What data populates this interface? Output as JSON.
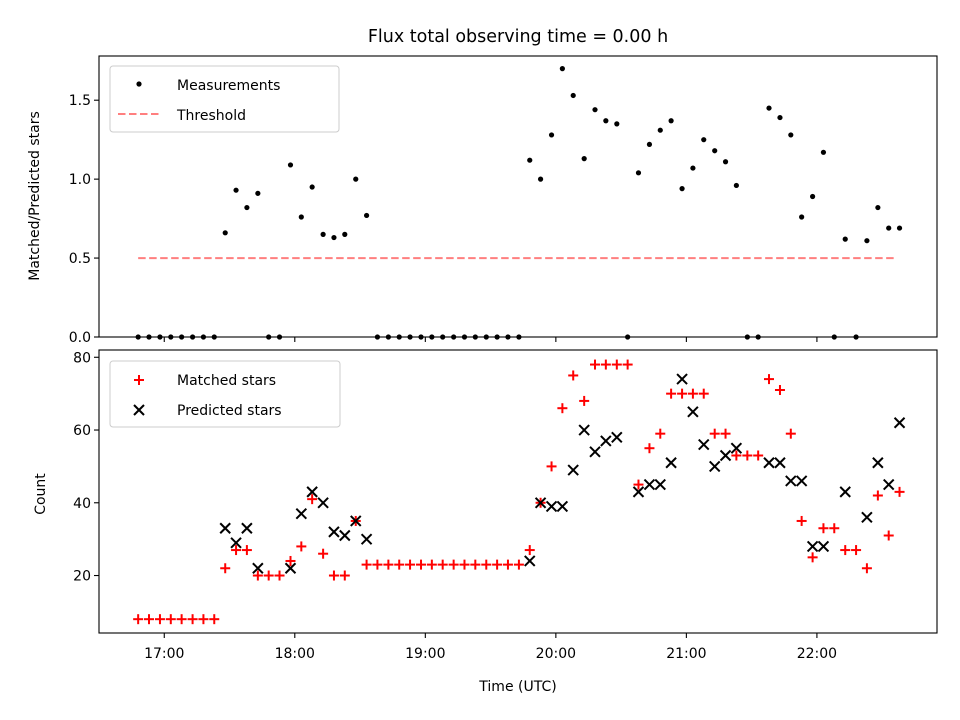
{
  "chart_data": [
    {
      "type": "scatter",
      "title": "Flux total observing time = 0.00 h",
      "xlabel": "",
      "ylabel": "Matched/Predicted stars",
      "xlim": [
        16.5,
        22.92
      ],
      "ylim": [
        0.0,
        1.78
      ],
      "yticks": [
        0.0,
        0.5,
        1.0,
        1.5
      ],
      "ytick_labels": [
        "0.0",
        "0.5",
        "1.0",
        "1.5"
      ],
      "legend": {
        "placement": "top-left",
        "entries": [
          "Measurements",
          "Threshold"
        ]
      },
      "threshold": {
        "name": "Threshold",
        "value": 0.5,
        "x_range": [
          16.8,
          22.6
        ],
        "color": "#ff7f7f"
      },
      "series": [
        {
          "name": "Measurements",
          "color": "#000000",
          "points": [
            [
              16.8,
              0
            ],
            [
              16.883,
              0
            ],
            [
              16.967,
              0
            ],
            [
              17.05,
              0
            ],
            [
              17.133,
              0
            ],
            [
              17.217,
              0
            ],
            [
              17.3,
              0
            ],
            [
              17.383,
              0
            ],
            [
              17.467,
              0.66
            ],
            [
              17.55,
              0.93
            ],
            [
              17.633,
              0.82
            ],
            [
              17.717,
              0.91
            ],
            [
              17.8,
              0
            ],
            [
              17.883,
              0
            ],
            [
              17.967,
              1.09
            ],
            [
              18.05,
              0.76
            ],
            [
              18.133,
              0.95
            ],
            [
              18.217,
              0.65
            ],
            [
              18.3,
              0.63
            ],
            [
              18.383,
              0.65
            ],
            [
              18.467,
              1.0
            ],
            [
              18.55,
              0.77
            ],
            [
              18.633,
              0
            ],
            [
              18.717,
              0
            ],
            [
              18.8,
              0
            ],
            [
              18.883,
              0
            ],
            [
              18.967,
              0
            ],
            [
              19.05,
              0
            ],
            [
              19.133,
              0
            ],
            [
              19.217,
              0
            ],
            [
              19.3,
              0
            ],
            [
              19.383,
              0
            ],
            [
              19.467,
              0
            ],
            [
              19.55,
              0
            ],
            [
              19.633,
              0
            ],
            [
              19.717,
              0
            ],
            [
              19.8,
              1.12
            ],
            [
              19.883,
              1.0
            ],
            [
              19.967,
              1.28
            ],
            [
              20.05,
              1.7
            ],
            [
              20.133,
              1.53
            ],
            [
              20.217,
              1.13
            ],
            [
              20.3,
              1.44
            ],
            [
              20.383,
              1.37
            ],
            [
              20.467,
              1.35
            ],
            [
              20.55,
              0
            ],
            [
              20.633,
              1.04
            ],
            [
              20.717,
              1.22
            ],
            [
              20.8,
              1.31
            ],
            [
              20.883,
              1.37
            ],
            [
              20.967,
              0.94
            ],
            [
              21.05,
              1.07
            ],
            [
              21.133,
              1.25
            ],
            [
              21.217,
              1.18
            ],
            [
              21.3,
              1.11
            ],
            [
              21.383,
              0.96
            ],
            [
              21.467,
              0
            ],
            [
              21.55,
              0
            ],
            [
              21.633,
              1.45
            ],
            [
              21.717,
              1.39
            ],
            [
              21.8,
              1.28
            ],
            [
              21.883,
              0.76
            ],
            [
              21.967,
              0.89
            ],
            [
              22.05,
              1.17
            ],
            [
              22.133,
              0
            ],
            [
              22.217,
              0.62
            ],
            [
              22.3,
              0
            ],
            [
              22.383,
              0.61
            ],
            [
              22.467,
              0.82
            ],
            [
              22.55,
              0.69
            ],
            [
              22.633,
              0.69
            ]
          ]
        }
      ]
    },
    {
      "type": "scatter",
      "title": "",
      "xlabel": "Time (UTC)",
      "ylabel": "Count",
      "xlim": [
        16.5,
        22.92
      ],
      "ylim": [
        4.2,
        82.0
      ],
      "xticks": [
        17,
        18,
        19,
        20,
        21,
        22
      ],
      "xtick_labels": [
        "17:00",
        "18:00",
        "19:00",
        "20:00",
        "21:00",
        "22:00"
      ],
      "yticks": [
        20,
        40,
        60,
        80
      ],
      "ytick_labels": [
        "20",
        "40",
        "60",
        "80"
      ],
      "legend": {
        "placement": "top-left",
        "entries": [
          "Matched stars",
          "Predicted stars"
        ]
      },
      "series": [
        {
          "name": "Matched stars",
          "marker": "plus",
          "color": "#ff0000",
          "points": [
            [
              16.8,
              8
            ],
            [
              16.883,
              8
            ],
            [
              16.967,
              8
            ],
            [
              17.05,
              8
            ],
            [
              17.133,
              8
            ],
            [
              17.217,
              8
            ],
            [
              17.3,
              8
            ],
            [
              17.383,
              8
            ],
            [
              17.467,
              22
            ],
            [
              17.55,
              27
            ],
            [
              17.633,
              27
            ],
            [
              17.717,
              20
            ],
            [
              17.8,
              20
            ],
            [
              17.883,
              20
            ],
            [
              17.967,
              24
            ],
            [
              18.05,
              28
            ],
            [
              18.133,
              41
            ],
            [
              18.217,
              26
            ],
            [
              18.3,
              20
            ],
            [
              18.383,
              20
            ],
            [
              18.467,
              35
            ],
            [
              18.55,
              23
            ],
            [
              18.633,
              23
            ],
            [
              18.717,
              23
            ],
            [
              18.8,
              23
            ],
            [
              18.883,
              23
            ],
            [
              18.967,
              23
            ],
            [
              19.05,
              23
            ],
            [
              19.133,
              23
            ],
            [
              19.217,
              23
            ],
            [
              19.3,
              23
            ],
            [
              19.383,
              23
            ],
            [
              19.467,
              23
            ],
            [
              19.55,
              23
            ],
            [
              19.633,
              23
            ],
            [
              19.717,
              23
            ],
            [
              19.8,
              27
            ],
            [
              19.883,
              40
            ],
            [
              19.967,
              50
            ],
            [
              20.05,
              66
            ],
            [
              20.133,
              75
            ],
            [
              20.217,
              68
            ],
            [
              20.3,
              78
            ],
            [
              20.383,
              78
            ],
            [
              20.467,
              78
            ],
            [
              20.55,
              78
            ],
            [
              20.633,
              45
            ],
            [
              20.717,
              55
            ],
            [
              20.8,
              59
            ],
            [
              20.883,
              70
            ],
            [
              20.967,
              70
            ],
            [
              21.05,
              70
            ],
            [
              21.133,
              70
            ],
            [
              21.217,
              59
            ],
            [
              21.3,
              59
            ],
            [
              21.383,
              53
            ],
            [
              21.467,
              53
            ],
            [
              21.55,
              53
            ],
            [
              21.633,
              74
            ],
            [
              21.717,
              71
            ],
            [
              21.8,
              59
            ],
            [
              21.883,
              35
            ],
            [
              21.967,
              25
            ],
            [
              22.05,
              33
            ],
            [
              22.133,
              33
            ],
            [
              22.217,
              27
            ],
            [
              22.3,
              27
            ],
            [
              22.383,
              22
            ],
            [
              22.467,
              42
            ],
            [
              22.55,
              31
            ],
            [
              22.633,
              43
            ]
          ]
        },
        {
          "name": "Predicted stars",
          "marker": "x",
          "color": "#000000",
          "points": [
            [
              17.467,
              33
            ],
            [
              17.55,
              29
            ],
            [
              17.633,
              33
            ],
            [
              17.717,
              22
            ],
            [
              17.967,
              22
            ],
            [
              18.05,
              37
            ],
            [
              18.133,
              43
            ],
            [
              18.217,
              40
            ],
            [
              18.3,
              32
            ],
            [
              18.383,
              31
            ],
            [
              18.467,
              35
            ],
            [
              18.55,
              30
            ],
            [
              19.8,
              24
            ],
            [
              19.883,
              40
            ],
            [
              19.967,
              39
            ],
            [
              20.05,
              39
            ],
            [
              20.133,
              49
            ],
            [
              20.217,
              60
            ],
            [
              20.3,
              54
            ],
            [
              20.383,
              57
            ],
            [
              20.467,
              58
            ],
            [
              20.633,
              43
            ],
            [
              20.717,
              45
            ],
            [
              20.8,
              45
            ],
            [
              20.883,
              51
            ],
            [
              20.967,
              74
            ],
            [
              21.05,
              65
            ],
            [
              21.133,
              56
            ],
            [
              21.217,
              50
            ],
            [
              21.3,
              53
            ],
            [
              21.383,
              55
            ],
            [
              21.633,
              51
            ],
            [
              21.717,
              51
            ],
            [
              21.8,
              46
            ],
            [
              21.883,
              46
            ],
            [
              21.967,
              28
            ],
            [
              22.05,
              28
            ],
            [
              22.217,
              43
            ],
            [
              22.383,
              36
            ],
            [
              22.467,
              51
            ],
            [
              22.55,
              45
            ],
            [
              22.633,
              62
            ]
          ]
        }
      ]
    }
  ]
}
